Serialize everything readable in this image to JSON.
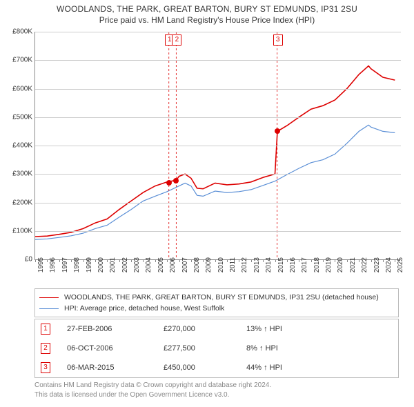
{
  "title": {
    "line1": "WOODLANDS, THE PARK, GREAT BARTON, BURY ST EDMUNDS, IP31 2SU",
    "line2": "Price paid vs. HM Land Registry's House Price Index (HPI)"
  },
  "chart": {
    "type": "line",
    "background_color": "#ffffff",
    "grid_color": "#cccccc",
    "axis_color": "#888888",
    "xlim": [
      1995,
      2025.5
    ],
    "ylim": [
      0,
      800000
    ],
    "ytick_step": 100000,
    "yticks": [
      "£0",
      "£100K",
      "£200K",
      "£300K",
      "£400K",
      "£500K",
      "£600K",
      "£700K",
      "£800K"
    ],
    "xticks": [
      "1995",
      "1996",
      "1997",
      "1998",
      "1999",
      "2000",
      "2001",
      "2002",
      "2003",
      "2004",
      "2005",
      "2006",
      "2007",
      "2008",
      "2009",
      "2010",
      "2011",
      "2012",
      "2013",
      "2014",
      "2015",
      "2016",
      "2017",
      "2018",
      "2019",
      "2020",
      "2021",
      "2022",
      "2023",
      "2024",
      "2025"
    ],
    "series": [
      {
        "id": "property",
        "label": "WOODLANDS, THE PARK, GREAT BARTON, BURY ST EDMUNDS, IP31 2SU (detached house)",
        "color": "#dd0000",
        "line_width": 1.6,
        "points": [
          [
            1995,
            80000
          ],
          [
            1996,
            82000
          ],
          [
            1997,
            88000
          ],
          [
            1998,
            95000
          ],
          [
            1999,
            108000
          ],
          [
            2000,
            128000
          ],
          [
            2001,
            142000
          ],
          [
            2002,
            175000
          ],
          [
            2003,
            205000
          ],
          [
            2004,
            235000
          ],
          [
            2005,
            258000
          ],
          [
            2006,
            272000
          ],
          [
            2006.75,
            278000
          ],
          [
            2007,
            292000
          ],
          [
            2007.5,
            300000
          ],
          [
            2008,
            285000
          ],
          [
            2008.5,
            250000
          ],
          [
            2009,
            248000
          ],
          [
            2010,
            268000
          ],
          [
            2011,
            262000
          ],
          [
            2012,
            265000
          ],
          [
            2013,
            272000
          ],
          [
            2014,
            288000
          ],
          [
            2015,
            300000
          ],
          [
            2015.2,
            450000
          ],
          [
            2016,
            470000
          ],
          [
            2017,
            500000
          ],
          [
            2018,
            528000
          ],
          [
            2019,
            540000
          ],
          [
            2020,
            560000
          ],
          [
            2021,
            600000
          ],
          [
            2022,
            650000
          ],
          [
            2022.8,
            680000
          ],
          [
            2023,
            670000
          ],
          [
            2024,
            640000
          ],
          [
            2025,
            630000
          ]
        ]
      },
      {
        "id": "hpi",
        "label": "HPI: Average price, detached house, West Suffolk",
        "color": "#5b8fd6",
        "line_width": 1.2,
        "points": [
          [
            1995,
            70000
          ],
          [
            1996,
            72000
          ],
          [
            1997,
            77000
          ],
          [
            1998,
            83000
          ],
          [
            1999,
            92000
          ],
          [
            2000,
            108000
          ],
          [
            2001,
            120000
          ],
          [
            2002,
            148000
          ],
          [
            2003,
            175000
          ],
          [
            2004,
            205000
          ],
          [
            2005,
            222000
          ],
          [
            2006,
            238000
          ],
          [
            2007,
            258000
          ],
          [
            2007.5,
            268000
          ],
          [
            2008,
            258000
          ],
          [
            2008.5,
            225000
          ],
          [
            2009,
            222000
          ],
          [
            2010,
            240000
          ],
          [
            2011,
            235000
          ],
          [
            2012,
            238000
          ],
          [
            2013,
            245000
          ],
          [
            2014,
            260000
          ],
          [
            2015,
            275000
          ],
          [
            2016,
            298000
          ],
          [
            2017,
            320000
          ],
          [
            2018,
            340000
          ],
          [
            2019,
            350000
          ],
          [
            2020,
            370000
          ],
          [
            2021,
            408000
          ],
          [
            2022,
            450000
          ],
          [
            2022.8,
            472000
          ],
          [
            2023,
            465000
          ],
          [
            2024,
            450000
          ],
          [
            2025,
            445000
          ]
        ]
      }
    ],
    "sale_markers": [
      {
        "n": "1",
        "year": 2006.15,
        "price": 270000
      },
      {
        "n": "2",
        "year": 2006.76,
        "price": 277500
      },
      {
        "n": "3",
        "year": 2015.18,
        "price": 450000
      }
    ],
    "label_fontsize": 10,
    "title_fontsize": 12
  },
  "legend": {
    "items": [
      {
        "color": "#dd0000",
        "width": 1.6,
        "text": "WOODLANDS, THE PARK, GREAT BARTON, BURY ST EDMUNDS, IP31 2SU (detached house)"
      },
      {
        "color": "#5b8fd6",
        "width": 1.2,
        "text": "HPI: Average price, detached house, West Suffolk"
      }
    ]
  },
  "sales": [
    {
      "n": "1",
      "date": "27-FEB-2006",
      "price": "£270,000",
      "diff": "13% ↑ HPI"
    },
    {
      "n": "2",
      "date": "06-OCT-2006",
      "price": "£277,500",
      "diff": "8% ↑ HPI"
    },
    {
      "n": "3",
      "date": "06-MAR-2015",
      "price": "£450,000",
      "diff": "44% ↑ HPI"
    }
  ],
  "footer": {
    "line1": "Contains HM Land Registry data © Crown copyright and database right 2024.",
    "line2": "This data is licensed under the Open Government Licence v3.0."
  }
}
